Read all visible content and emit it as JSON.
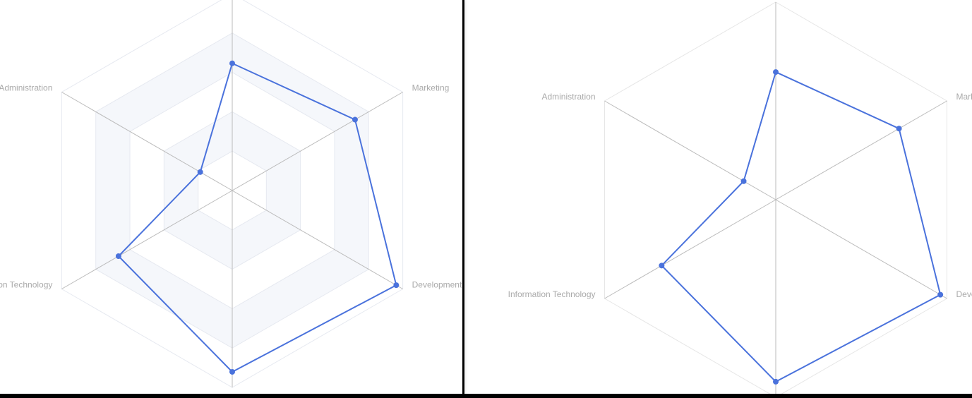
{
  "chart_data": [
    {
      "type": "radar",
      "style": "split-area",
      "indicators": [
        {
          "name": "",
          "max": 6500
        },
        {
          "name": "Marketing",
          "max": 25000
        },
        {
          "name": "Development",
          "max": 52000
        },
        {
          "name": "",
          "max": 38000
        },
        {
          "name": "Information Technology",
          "max": 30000
        },
        {
          "name": "Administration",
          "max": 16000
        }
      ],
      "series": [
        {
          "values": [
            4200,
            18000,
            50000,
            35000,
            20000,
            3000
          ]
        }
      ],
      "split_number": 5,
      "colors": {
        "line": "#4a72dc",
        "axis": "#bbbbbb",
        "split_area": [
          "#f5f7fb",
          "#ffffff"
        ],
        "split_line": "#e6e9f0"
      }
    },
    {
      "type": "radar",
      "style": "lines",
      "indicators": [
        {
          "name": "",
          "max": 6500
        },
        {
          "name": "Marketing",
          "max": 25000
        },
        {
          "name": "Development",
          "max": 52000
        },
        {
          "name": "",
          "max": 38000
        },
        {
          "name": "Information Technology",
          "max": 30000
        },
        {
          "name": "Administration",
          "max": 16000
        }
      ],
      "series": [
        {
          "values": [
            4200,
            18000,
            50000,
            35000,
            20000,
            3000
          ]
        }
      ],
      "split_number": 1,
      "colors": {
        "line": "#4a72dc",
        "axis": "#bbbbbb",
        "split_line": "#e6e6e6"
      }
    }
  ]
}
